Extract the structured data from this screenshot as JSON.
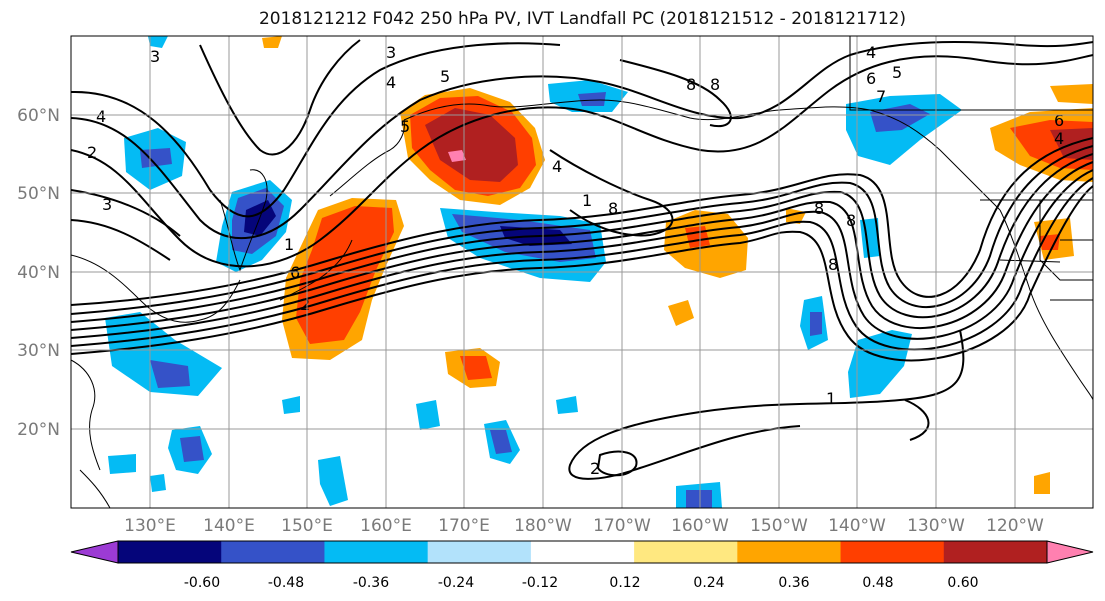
{
  "title": "2018121212 F042 250 hPa PV, IVT Landfall PC (2018121512 - 2018121712)",
  "lat_labels": [
    "60°N",
    "50°N",
    "40°N",
    "30°N",
    "20°N"
  ],
  "lon_labels": [
    "130°E",
    "140°E",
    "150°E",
    "160°E",
    "170°E",
    "180°W",
    "170°W",
    "160°W",
    "150°W",
    "140°W",
    "130°W",
    "120°W"
  ],
  "colorbar": {
    "colors": [
      "#9c3bd4",
      "#05057a",
      "#3552c8",
      "#04bbf4",
      "#b2e2fb",
      "#ffffff",
      "#ffe880",
      "#ffa500",
      "#ff3f00",
      "#b02020",
      "#ff80b0"
    ],
    "tick_labels": [
      "-0.60",
      "-0.48",
      "-0.36",
      "-0.24",
      "-0.12",
      "0.12",
      "0.24",
      "0.36",
      "0.48",
      "0.60"
    ]
  },
  "contour_labels": [
    "3",
    "4",
    "2",
    "3",
    "3",
    "4",
    "5",
    "8",
    "8",
    "7",
    "6",
    "5",
    "4",
    "5",
    "4",
    "1",
    "8",
    "6",
    "2",
    "1",
    "8",
    "8",
    "8",
    "1",
    "2",
    "6",
    "4"
  ]
}
